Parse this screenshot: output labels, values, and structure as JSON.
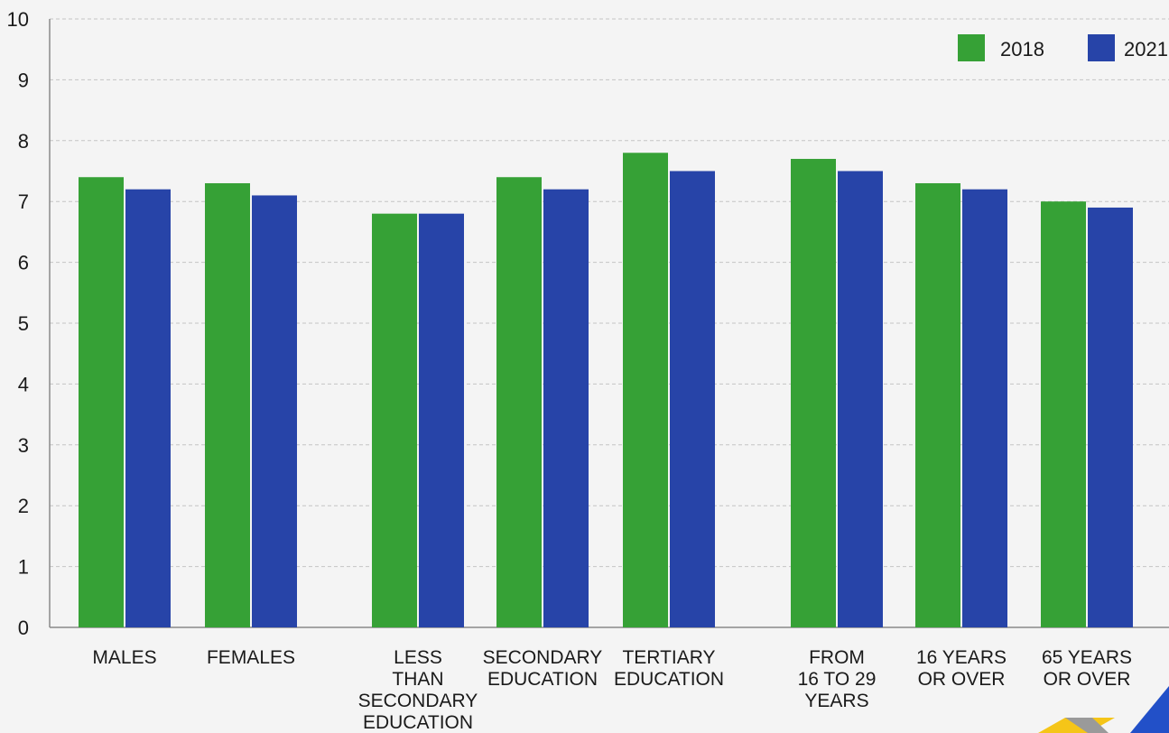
{
  "chart_data": {
    "type": "bar",
    "title": "",
    "xlabel": "",
    "ylabel": "",
    "ylim": [
      0,
      10
    ],
    "yticks": [
      0,
      1,
      2,
      3,
      4,
      5,
      6,
      7,
      8,
      9,
      10
    ],
    "grid": true,
    "legend_position": "top-right",
    "categories": [
      [
        "MALES"
      ],
      [
        "FEMALES"
      ],
      [
        "LESS",
        "THAN",
        "SECONDARY",
        "EDUCATION"
      ],
      [
        "SECONDARY",
        "EDUCATION"
      ],
      [
        "TERTIARY",
        "EDUCATION"
      ],
      [
        "FROM",
        "16 TO 29",
        "YEARS"
      ],
      [
        "16 YEARS",
        "OR OVER"
      ],
      [
        "65 YEARS",
        "OR OVER"
      ]
    ],
    "groups": [
      [
        0,
        1
      ],
      [
        2,
        3,
        4
      ],
      [
        5,
        6,
        7
      ]
    ],
    "series": [
      {
        "name": "2018",
        "color": "#36a136",
        "values": [
          7.4,
          7.3,
          6.8,
          7.4,
          7.8,
          7.7,
          7.3,
          7.0
        ]
      },
      {
        "name": "2021",
        "color": "#2744a8",
        "values": [
          7.2,
          7.1,
          6.8,
          7.2,
          7.5,
          7.5,
          7.2,
          6.9
        ]
      }
    ]
  },
  "decor": {
    "logo_colors": [
      "#f5c518",
      "#9a9a9a",
      "#2250c8"
    ]
  }
}
